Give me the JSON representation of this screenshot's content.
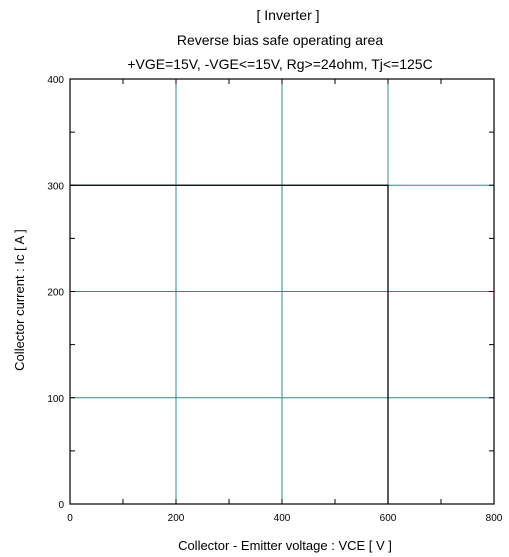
{
  "chart_data": {
    "type": "line",
    "title": "[ Inverter ]",
    "subtitle": "Reverse bias safe operating area",
    "conditions": "+VGE=15V, -VGE<=15V, Rg>=24ohm, Tj<=125C",
    "xlabel": "Collector - Emitter voltage  :  VCE  [ V ]",
    "ylabel": "Collector current  : Ic  [ A ]",
    "xlim": [
      0,
      800
    ],
    "ylim": [
      0,
      400
    ],
    "x_ticks": [
      0,
      200,
      400,
      600,
      800
    ],
    "y_ticks": [
      0,
      100,
      200,
      300,
      400
    ],
    "x_ticks_labels": [
      "0",
      "200",
      "400",
      "600",
      "800"
    ],
    "y_ticks_labels": [
      "0",
      "100",
      "200",
      "300",
      "400"
    ],
    "grid": true,
    "series": [
      {
        "x": [
          0,
          600,
          600
        ],
        "y": [
          300,
          300,
          0
        ],
        "color": "#000000"
      }
    ],
    "gridline_color": "#2e8b8b"
  }
}
